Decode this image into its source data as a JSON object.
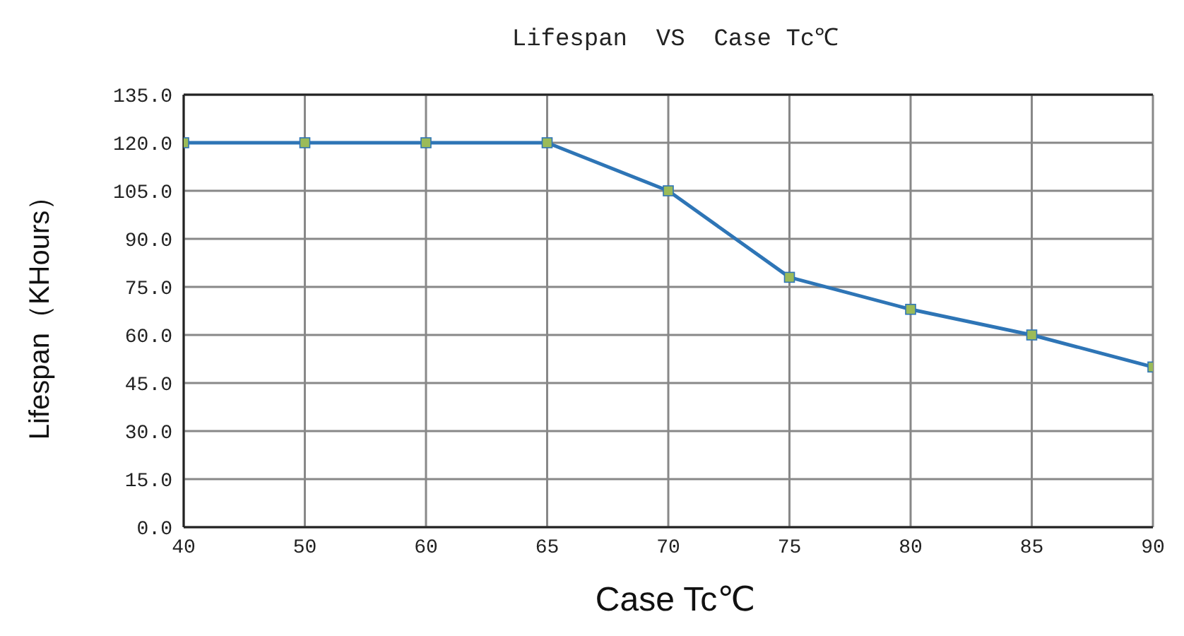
{
  "chart_data": {
    "type": "line",
    "title": "Lifespan  VS  Case Tc℃",
    "xlabel": "Case Tc℃",
    "ylabel": "Lifespan（KHours）",
    "categories": [
      "40",
      "50",
      "60",
      "65",
      "70",
      "75",
      "80",
      "85",
      "90"
    ],
    "series": [
      {
        "color": "#2e75b6",
        "values": [
          120,
          120,
          120,
          120,
          105,
          78,
          68,
          60,
          50
        ]
      }
    ],
    "ylim": [
      0,
      135
    ],
    "yticks": [
      {
        "value": 0,
        "label": "0.0"
      },
      {
        "value": 15,
        "label": "15.0"
      },
      {
        "value": 30,
        "label": "30.0"
      },
      {
        "value": 45,
        "label": "45.0"
      },
      {
        "value": 60,
        "label": "60.0"
      },
      {
        "value": 75,
        "label": "75.0"
      },
      {
        "value": 90,
        "label": "90.0"
      },
      {
        "value": 105,
        "label": "105.0"
      },
      {
        "value": 120,
        "label": "120.0"
      },
      {
        "value": 135,
        "label": "135.0"
      }
    ],
    "grid": true,
    "marker": "square",
    "line_style": "solid"
  }
}
